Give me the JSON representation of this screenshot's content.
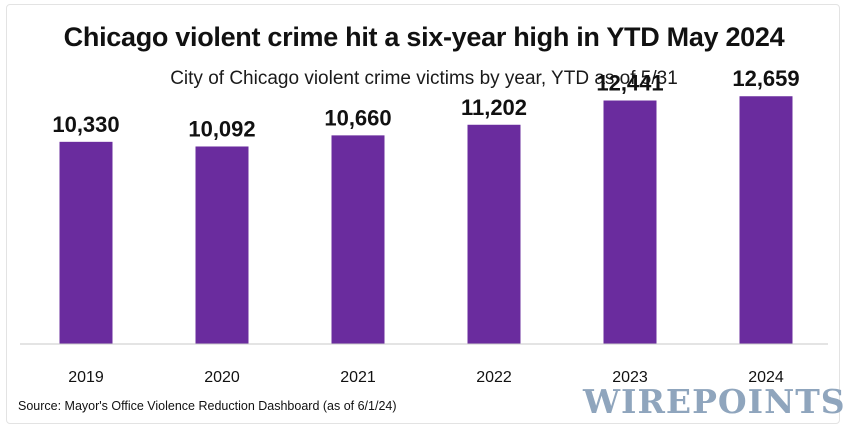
{
  "chart_data": {
    "type": "bar",
    "title": "Chicago violent crime hit a six-year high in YTD May 2024",
    "subtitle": "City of Chicago violent crime victims by year, YTD as of 5/31",
    "categories": [
      "2019",
      "2020",
      "2021",
      "2022",
      "2023",
      "2024"
    ],
    "values": [
      10330,
      10092,
      10660,
      11202,
      12441,
      12659
    ],
    "data_labels": [
      "10,330",
      "10,092",
      "10,660",
      "11,202",
      "12,441",
      "12,659"
    ],
    "xlabel": "",
    "ylabel": "",
    "ylim": [
      0,
      14000
    ],
    "grid": false,
    "bar_color": "#6a2c9e"
  },
  "footer": {
    "source": "Source: Mayor's Office Violence Reduction Dashboard (as of 6/1/24)",
    "logo": "WIREPOINTS"
  }
}
